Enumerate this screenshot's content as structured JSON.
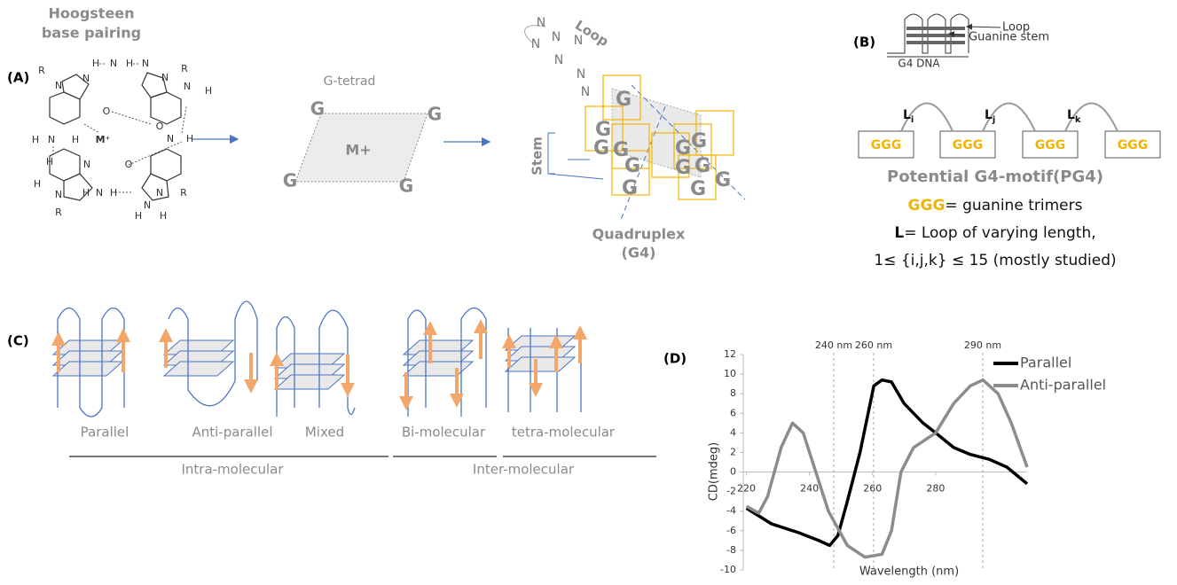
{
  "panel_a": {
    "label": "(A)",
    "hoogsteen_title": [
      "Hoogsteen",
      "base pairing"
    ],
    "atoms": [
      "R",
      "N",
      "N",
      "H",
      "N",
      "H",
      "N",
      "N",
      "R",
      "N",
      "H",
      "H",
      "N",
      "H",
      "O",
      "M⁺",
      "O",
      "N",
      "H",
      "H",
      "N",
      "O",
      "H",
      "N",
      "R",
      "H",
      "N",
      "H",
      "N",
      "R",
      "H",
      "H",
      "N"
    ],
    "tetrad_title": "G-tetrad",
    "tetrad_guanines": [
      "G",
      "G",
      "G",
      "G"
    ],
    "tetrad_ion": "M+",
    "loop": "Loop",
    "stem": "Stem",
    "loop_bases": [
      "N",
      "N",
      "N",
      "N",
      "N",
      "N",
      "N"
    ],
    "stack_guanines": [
      "G",
      "G",
      "G",
      "G",
      "G",
      "G",
      "G",
      "G",
      "G",
      "G",
      "G",
      "G"
    ],
    "quadruplex": [
      "Quadruplex",
      "(G4)"
    ]
  },
  "panel_b": {
    "label": "(B)",
    "loop": "Loop",
    "stem": "Guanine stem",
    "icon_caption": "G4 DNA",
    "boxes": [
      "GGG",
      "GGG",
      "GGG",
      "GGG"
    ],
    "loops": [
      {
        "letter": "L",
        "sub": "i"
      },
      {
        "letter": "L",
        "sub": "j"
      },
      {
        "letter": "L",
        "sub": "k"
      }
    ],
    "motif_title": "Potential G4-motif(PG4)",
    "legend_ggg": [
      "GGG",
      "= guanine trimers"
    ],
    "legend_loop": [
      "L",
      "= Loop of varying length,"
    ],
    "range_note": "1≤ {i,j,k} ≤  15 (mostly studied)"
  },
  "panel_c": {
    "label": "(C)",
    "topologies": [
      "Parallel",
      "Anti-parallel",
      "Mixed",
      "Bi-molecular",
      "tetra-molecular"
    ],
    "groups": [
      "Intra-molecular",
      "Inter-molecular"
    ]
  },
  "panel_d": {
    "label": "(D)"
  },
  "chart_data": {
    "type": "line",
    "xlabel": "Wavelength (nm)",
    "ylabel": "CD(mdeg)",
    "xlim": [
      219,
      309
    ],
    "ylim": [
      -10,
      12
    ],
    "xticks": [
      220,
      240,
      260,
      280
    ],
    "yticks": [
      -10,
      -8,
      -6,
      -4,
      -2,
      0,
      2,
      4,
      6,
      8,
      10,
      12
    ],
    "annotations": [
      "240 nm",
      "260 nm",
      "290 nm"
    ],
    "legend": "right",
    "series": [
      {
        "name": "Parallel",
        "color": "#000000",
        "x": [
          220,
          228,
          236.6,
          243,
          246.4,
          249,
          252,
          256,
          260.4,
          263,
          266,
          270,
          276,
          280,
          285.7,
          291,
          297,
          302.6,
          309
        ],
        "values": [
          -3.7,
          -5.3,
          -6.2,
          -7,
          -7.5,
          -6.5,
          -3,
          2,
          8.8,
          9.4,
          9.2,
          7,
          5,
          4,
          2.5,
          1.8,
          1.3,
          0.5,
          -1.2
        ]
      },
      {
        "name": "Anti-parallel",
        "color": "#8c8c8c",
        "x": [
          220,
          223.9,
          226.7,
          231,
          234.6,
          238,
          242,
          246,
          252,
          257.6,
          263,
          266,
          269,
          273,
          280,
          285.7,
          291,
          295,
          299.8,
          304,
          309
        ],
        "values": [
          -3.5,
          -4.2,
          -2.5,
          2.5,
          5,
          4,
          0,
          -4,
          -7.5,
          -8.7,
          -8.4,
          -6,
          0,
          2.5,
          4,
          7,
          8.8,
          9.4,
          8,
          5,
          0.5
        ]
      }
    ]
  }
}
